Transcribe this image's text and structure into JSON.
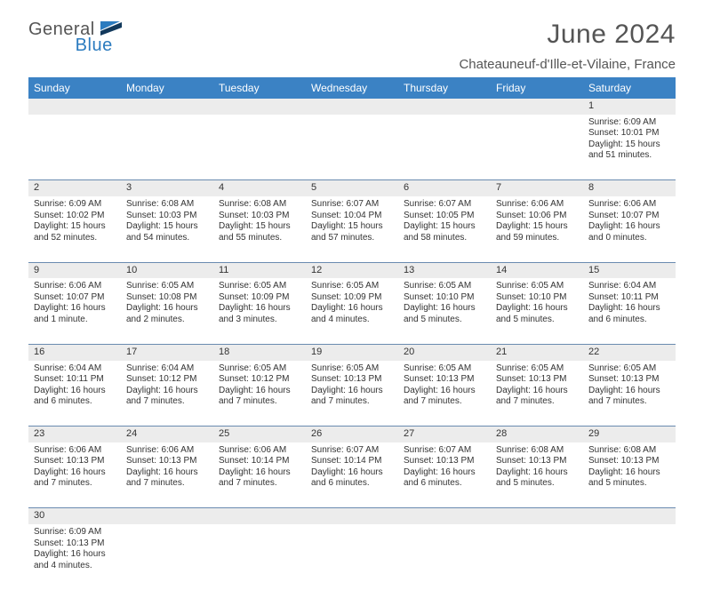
{
  "brand": {
    "dark": "General",
    "blue": "Blue"
  },
  "title": "June 2024",
  "location": "Chateauneuf-d'Ille-et-Vilaine, France",
  "colors": {
    "header_bg": "#3b82c4",
    "header_text": "#ffffff",
    "row_divider": "#6a8bb0",
    "daynum_bg": "#ececec",
    "body_text": "#333333",
    "title_text": "#555555",
    "brand_blue": "#2b7bbf",
    "flag_blue": "#2b7bbf",
    "flag_dark": "#12395c"
  },
  "typography": {
    "title_fontsize": 30,
    "location_fontsize": 15,
    "header_fontsize": 12,
    "daynum_fontsize": 11,
    "cell_fontsize": 10
  },
  "weekdays": [
    "Sunday",
    "Monday",
    "Tuesday",
    "Wednesday",
    "Thursday",
    "Friday",
    "Saturday"
  ],
  "weeks": [
    {
      "nums": [
        "",
        "",
        "",
        "",
        "",
        "",
        "1"
      ],
      "cells": [
        null,
        null,
        null,
        null,
        null,
        null,
        {
          "sunrise": "Sunrise: 6:09 AM",
          "sunset": "Sunset: 10:01 PM",
          "day1": "Daylight: 15 hours",
          "day2": "and 51 minutes."
        }
      ]
    },
    {
      "nums": [
        "2",
        "3",
        "4",
        "5",
        "6",
        "7",
        "8"
      ],
      "cells": [
        {
          "sunrise": "Sunrise: 6:09 AM",
          "sunset": "Sunset: 10:02 PM",
          "day1": "Daylight: 15 hours",
          "day2": "and 52 minutes."
        },
        {
          "sunrise": "Sunrise: 6:08 AM",
          "sunset": "Sunset: 10:03 PM",
          "day1": "Daylight: 15 hours",
          "day2": "and 54 minutes."
        },
        {
          "sunrise": "Sunrise: 6:08 AM",
          "sunset": "Sunset: 10:03 PM",
          "day1": "Daylight: 15 hours",
          "day2": "and 55 minutes."
        },
        {
          "sunrise": "Sunrise: 6:07 AM",
          "sunset": "Sunset: 10:04 PM",
          "day1": "Daylight: 15 hours",
          "day2": "and 57 minutes."
        },
        {
          "sunrise": "Sunrise: 6:07 AM",
          "sunset": "Sunset: 10:05 PM",
          "day1": "Daylight: 15 hours",
          "day2": "and 58 minutes."
        },
        {
          "sunrise": "Sunrise: 6:06 AM",
          "sunset": "Sunset: 10:06 PM",
          "day1": "Daylight: 15 hours",
          "day2": "and 59 minutes."
        },
        {
          "sunrise": "Sunrise: 6:06 AM",
          "sunset": "Sunset: 10:07 PM",
          "day1": "Daylight: 16 hours",
          "day2": "and 0 minutes."
        }
      ]
    },
    {
      "nums": [
        "9",
        "10",
        "11",
        "12",
        "13",
        "14",
        "15"
      ],
      "cells": [
        {
          "sunrise": "Sunrise: 6:06 AM",
          "sunset": "Sunset: 10:07 PM",
          "day1": "Daylight: 16 hours",
          "day2": "and 1 minute."
        },
        {
          "sunrise": "Sunrise: 6:05 AM",
          "sunset": "Sunset: 10:08 PM",
          "day1": "Daylight: 16 hours",
          "day2": "and 2 minutes."
        },
        {
          "sunrise": "Sunrise: 6:05 AM",
          "sunset": "Sunset: 10:09 PM",
          "day1": "Daylight: 16 hours",
          "day2": "and 3 minutes."
        },
        {
          "sunrise": "Sunrise: 6:05 AM",
          "sunset": "Sunset: 10:09 PM",
          "day1": "Daylight: 16 hours",
          "day2": "and 4 minutes."
        },
        {
          "sunrise": "Sunrise: 6:05 AM",
          "sunset": "Sunset: 10:10 PM",
          "day1": "Daylight: 16 hours",
          "day2": "and 5 minutes."
        },
        {
          "sunrise": "Sunrise: 6:05 AM",
          "sunset": "Sunset: 10:10 PM",
          "day1": "Daylight: 16 hours",
          "day2": "and 5 minutes."
        },
        {
          "sunrise": "Sunrise: 6:04 AM",
          "sunset": "Sunset: 10:11 PM",
          "day1": "Daylight: 16 hours",
          "day2": "and 6 minutes."
        }
      ]
    },
    {
      "nums": [
        "16",
        "17",
        "18",
        "19",
        "20",
        "21",
        "22"
      ],
      "cells": [
        {
          "sunrise": "Sunrise: 6:04 AM",
          "sunset": "Sunset: 10:11 PM",
          "day1": "Daylight: 16 hours",
          "day2": "and 6 minutes."
        },
        {
          "sunrise": "Sunrise: 6:04 AM",
          "sunset": "Sunset: 10:12 PM",
          "day1": "Daylight: 16 hours",
          "day2": "and 7 minutes."
        },
        {
          "sunrise": "Sunrise: 6:05 AM",
          "sunset": "Sunset: 10:12 PM",
          "day1": "Daylight: 16 hours",
          "day2": "and 7 minutes."
        },
        {
          "sunrise": "Sunrise: 6:05 AM",
          "sunset": "Sunset: 10:13 PM",
          "day1": "Daylight: 16 hours",
          "day2": "and 7 minutes."
        },
        {
          "sunrise": "Sunrise: 6:05 AM",
          "sunset": "Sunset: 10:13 PM",
          "day1": "Daylight: 16 hours",
          "day2": "and 7 minutes."
        },
        {
          "sunrise": "Sunrise: 6:05 AM",
          "sunset": "Sunset: 10:13 PM",
          "day1": "Daylight: 16 hours",
          "day2": "and 7 minutes."
        },
        {
          "sunrise": "Sunrise: 6:05 AM",
          "sunset": "Sunset: 10:13 PM",
          "day1": "Daylight: 16 hours",
          "day2": "and 7 minutes."
        }
      ]
    },
    {
      "nums": [
        "23",
        "24",
        "25",
        "26",
        "27",
        "28",
        "29"
      ],
      "cells": [
        {
          "sunrise": "Sunrise: 6:06 AM",
          "sunset": "Sunset: 10:13 PM",
          "day1": "Daylight: 16 hours",
          "day2": "and 7 minutes."
        },
        {
          "sunrise": "Sunrise: 6:06 AM",
          "sunset": "Sunset: 10:13 PM",
          "day1": "Daylight: 16 hours",
          "day2": "and 7 minutes."
        },
        {
          "sunrise": "Sunrise: 6:06 AM",
          "sunset": "Sunset: 10:14 PM",
          "day1": "Daylight: 16 hours",
          "day2": "and 7 minutes."
        },
        {
          "sunrise": "Sunrise: 6:07 AM",
          "sunset": "Sunset: 10:14 PM",
          "day1": "Daylight: 16 hours",
          "day2": "and 6 minutes."
        },
        {
          "sunrise": "Sunrise: 6:07 AM",
          "sunset": "Sunset: 10:13 PM",
          "day1": "Daylight: 16 hours",
          "day2": "and 6 minutes."
        },
        {
          "sunrise": "Sunrise: 6:08 AM",
          "sunset": "Sunset: 10:13 PM",
          "day1": "Daylight: 16 hours",
          "day2": "and 5 minutes."
        },
        {
          "sunrise": "Sunrise: 6:08 AM",
          "sunset": "Sunset: 10:13 PM",
          "day1": "Daylight: 16 hours",
          "day2": "and 5 minutes."
        }
      ]
    },
    {
      "nums": [
        "30",
        "",
        "",
        "",
        "",
        "",
        ""
      ],
      "cells": [
        {
          "sunrise": "Sunrise: 6:09 AM",
          "sunset": "Sunset: 10:13 PM",
          "day1": "Daylight: 16 hours",
          "day2": "and 4 minutes."
        },
        null,
        null,
        null,
        null,
        null,
        null
      ]
    }
  ]
}
